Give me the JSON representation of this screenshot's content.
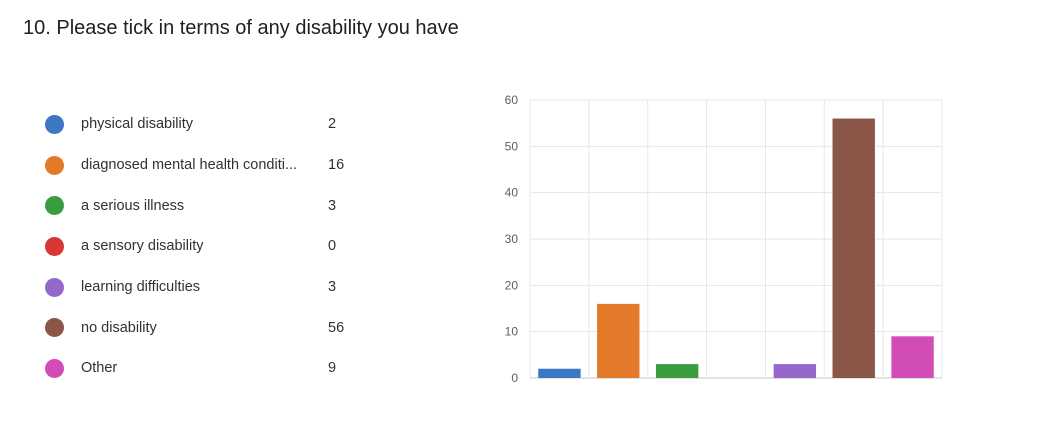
{
  "question": {
    "title": "10.  Please tick in terms of any disability you have"
  },
  "chart_data": {
    "type": "bar",
    "categories": [
      "physical disability",
      "diagnosed mental health conditi...",
      "a serious illness",
      "a sensory disability",
      "learning difficulties",
      "no disability",
      "Other"
    ],
    "values": [
      2,
      16,
      3,
      0,
      3,
      56,
      9
    ],
    "colors": [
      "#3c77c4",
      "#e27a2a",
      "#3a9c3f",
      "#d93636",
      "#9468cb",
      "#895648",
      "#d24cb6"
    ],
    "ylim": [
      0,
      60
    ],
    "yticks": [
      "0",
      "10",
      "20",
      "30",
      "40",
      "50",
      "60"
    ],
    "grid": true,
    "legend_position": "left"
  }
}
